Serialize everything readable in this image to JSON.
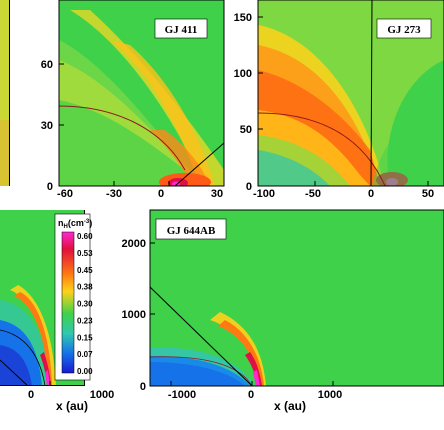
{
  "colors": {
    "field": "#3fd14a",
    "weak": "#35c6a5",
    "low": "#1672e8",
    "mid": "#ffd21a",
    "high": "#ff7a12",
    "peak": "#e01045",
    "max": "#ff28d2",
    "curve": "#8b1a1a"
  },
  "chart_data": [
    {
      "type": "heatmap",
      "panel": "left-edge-crop",
      "title": "",
      "note": "partially visible panel cropped at the left edge"
    },
    {
      "type": "heatmap",
      "title": "GJ 411",
      "xticks": [
        "-60",
        "-30",
        "0",
        "30"
      ],
      "yticks": [
        "0",
        "30",
        "60"
      ],
      "xlim": [
        -60,
        30
      ],
      "ylim": [
        0,
        80
      ],
      "overlays": [
        "boundary curve",
        "straight line from origin"
      ]
    },
    {
      "type": "heatmap",
      "title": "GJ 273",
      "xticks": [
        "-100",
        "-50",
        "0",
        "50"
      ],
      "yticks": [
        "0",
        "50",
        "100",
        "150"
      ],
      "xlim": [
        -100,
        65
      ],
      "ylim": [
        0,
        150
      ],
      "overlays": [
        "boundary curve",
        "vertical line at x=0"
      ]
    },
    {
      "type": "heatmap",
      "title": "",
      "xticks": [
        "0",
        "1000"
      ],
      "xlabel": "x (au)",
      "colorbar": {
        "title": "n",
        "title_sub": "H",
        "title_unit_pre": "(cm",
        "title_unit_exp": "-3",
        "title_unit_post": ")",
        "values": [
          "0.60",
          "0.53",
          "0.45",
          "0.38",
          "0.30",
          "0.23",
          "0.15",
          "0.07",
          "0.00"
        ]
      }
    },
    {
      "type": "heatmap",
      "title": "GJ 644AB",
      "xticks": [
        "-1000",
        "0",
        "1000"
      ],
      "yticks": [
        "0",
        "1000",
        "2000"
      ],
      "xlabel": "x (au)",
      "xlim": [
        -1700,
        1250
      ],
      "ylim": [
        0,
        2350
      ],
      "overlays": [
        "boundary curve",
        "straight line from upper left"
      ]
    }
  ]
}
